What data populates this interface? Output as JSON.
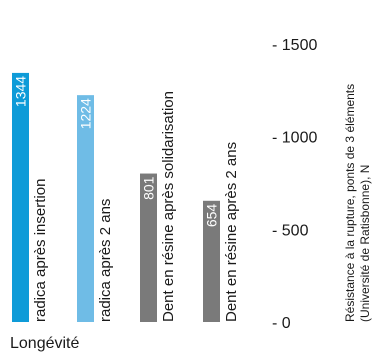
{
  "chart_data": {
    "type": "bar",
    "categories": [
      "radica après insertion",
      "radica après 2 ans",
      "Dent en résine après solidarisation",
      "Dent en résine après 2 ans"
    ],
    "values": [
      1344,
      1224,
      801,
      654
    ],
    "value_labels": [
      "1344",
      "1224",
      "801",
      "654"
    ],
    "colors": [
      "#0e9bd8",
      "#6fbce6",
      "#7a7a7a",
      "#7a7a7a"
    ],
    "xlabel": "Longévité",
    "ylabel_lines": [
      "Résistance à la rupture, ponts de 3 éléments",
      "(Université de Ratisbonne), N"
    ],
    "ylim": [
      0,
      1500
    ],
    "yticks": [
      0,
      500,
      1000,
      1500
    ],
    "ytick_labels": [
      "- 0",
      "- 500",
      "- 1000",
      "- 1500"
    ],
    "axis_position": "right",
    "grid": false,
    "legend": "none"
  }
}
